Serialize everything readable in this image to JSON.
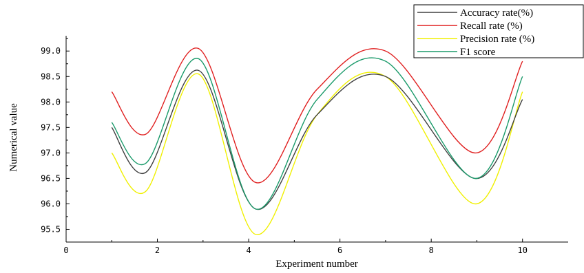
{
  "chart_data": {
    "type": "line",
    "xlabel": "Experiment number",
    "ylabel": "Numerical value",
    "xlim": [
      0,
      11
    ],
    "ylim": [
      95.25,
      99.3
    ],
    "xticks": [
      0,
      2,
      4,
      6,
      8,
      10
    ],
    "xtick_labels": [
      "0",
      "2",
      "4",
      "6",
      "8",
      "10"
    ],
    "yticks": [
      95.5,
      96.0,
      96.5,
      97.0,
      97.5,
      98.0,
      98.5,
      99.0
    ],
    "ytick_labels": [
      "95.5",
      "96.0",
      "96.5",
      "97.0",
      "97.5",
      "98.0",
      "98.5",
      "99.0"
    ],
    "grid": false,
    "legend_position": "top-right",
    "series": [
      {
        "name": "Accuracy rate(%)",
        "color": "#404040",
        "x": [
          1,
          1.75,
          2.9,
          4.15,
          5.5,
          7.0,
          8.95,
          10.0
        ],
        "y": [
          97.5,
          96.62,
          98.62,
          95.9,
          97.75,
          98.5,
          96.5,
          98.05
        ]
      },
      {
        "name": "Recall rate (%)",
        "color": "#e02020",
        "x": [
          1,
          1.75,
          2.9,
          4.15,
          5.5,
          7.0,
          8.95,
          10.0
        ],
        "y": [
          98.2,
          97.37,
          99.05,
          96.42,
          98.25,
          99.0,
          97.0,
          98.8
        ]
      },
      {
        "name": "Precision rate (%)",
        "color": "#f0f000",
        "x": [
          1,
          1.75,
          2.9,
          4.15,
          5.5,
          7.0,
          8.95,
          10.0
        ],
        "y": [
          97.0,
          96.25,
          98.55,
          95.4,
          97.75,
          98.5,
          96.0,
          98.2
        ]
      },
      {
        "name": "F1 score",
        "color": "#1a9a6a",
        "x": [
          1,
          1.75,
          2.9,
          4.15,
          5.5,
          7.0,
          8.95,
          10.0
        ],
        "y": [
          97.6,
          96.8,
          98.85,
          95.9,
          98.05,
          98.8,
          96.5,
          98.5
        ]
      }
    ]
  }
}
